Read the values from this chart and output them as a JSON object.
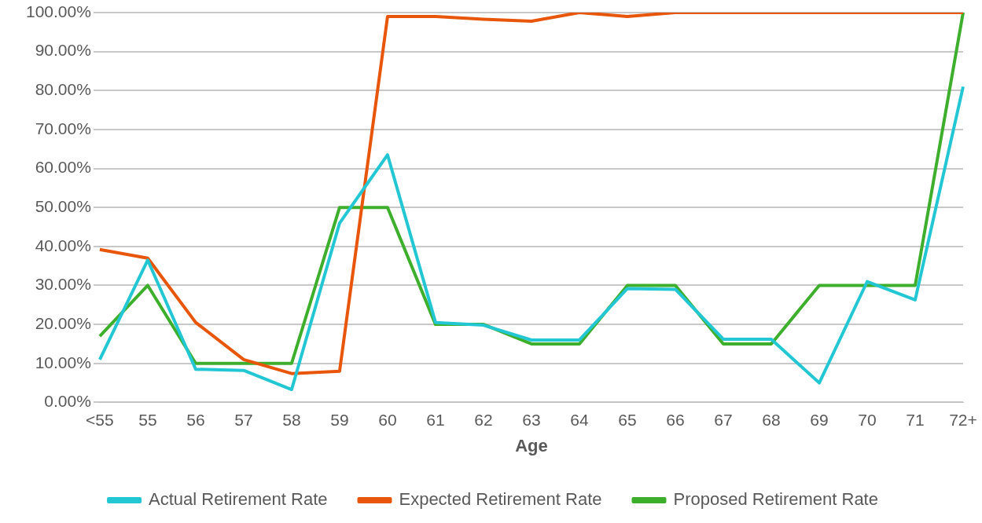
{
  "chart_data": {
    "type": "line",
    "xlabel": "Age",
    "categories": [
      "<55",
      "55",
      "56",
      "57",
      "58",
      "59",
      "60",
      "61",
      "62",
      "63",
      "64",
      "65",
      "66",
      "67",
      "68",
      "69",
      "70",
      "71",
      "72+"
    ],
    "series": [
      {
        "name": "Actual Retirement Rate",
        "color": "#22c7d3",
        "values": [
          11,
          36.5,
          8.5,
          8.2,
          3.3,
          46,
          63.5,
          20.5,
          19.8,
          16,
          16,
          29.2,
          29,
          16.2,
          16.2,
          5,
          31,
          26.3,
          81
        ]
      },
      {
        "name": "Expected Retirement Rate",
        "color": "#e8560c",
        "values": [
          39.2,
          37,
          20.5,
          11,
          7.4,
          8,
          99,
          99,
          98.3,
          97.8,
          100,
          99,
          100,
          100,
          100,
          100,
          100,
          100,
          100
        ]
      },
      {
        "name": "Proposed Retirement Rate",
        "color": "#3daf2c",
        "values": [
          17,
          30,
          10,
          10,
          10,
          50,
          50,
          20,
          20,
          15,
          15,
          30,
          30,
          15,
          15,
          30,
          30,
          30,
          100
        ]
      }
    ],
    "ylim": [
      0,
      100
    ],
    "yticks": [
      {
        "value": 0,
        "label": "0.00%"
      },
      {
        "value": 10,
        "label": "10.00%"
      },
      {
        "value": 20,
        "label": "20.00%"
      },
      {
        "value": 30,
        "label": "30.00%"
      },
      {
        "value": 40,
        "label": "40.00%"
      },
      {
        "value": 50,
        "label": "50.00%"
      },
      {
        "value": 60,
        "label": "60.00%"
      },
      {
        "value": 70,
        "label": "70.00%"
      },
      {
        "value": 80,
        "label": "80.00%"
      },
      {
        "value": 90,
        "label": "90.00%"
      },
      {
        "value": 100,
        "label": "100.00%"
      }
    ],
    "grid": "y",
    "legend": "bottom",
    "marker": "none",
    "line_style": "solid"
  }
}
